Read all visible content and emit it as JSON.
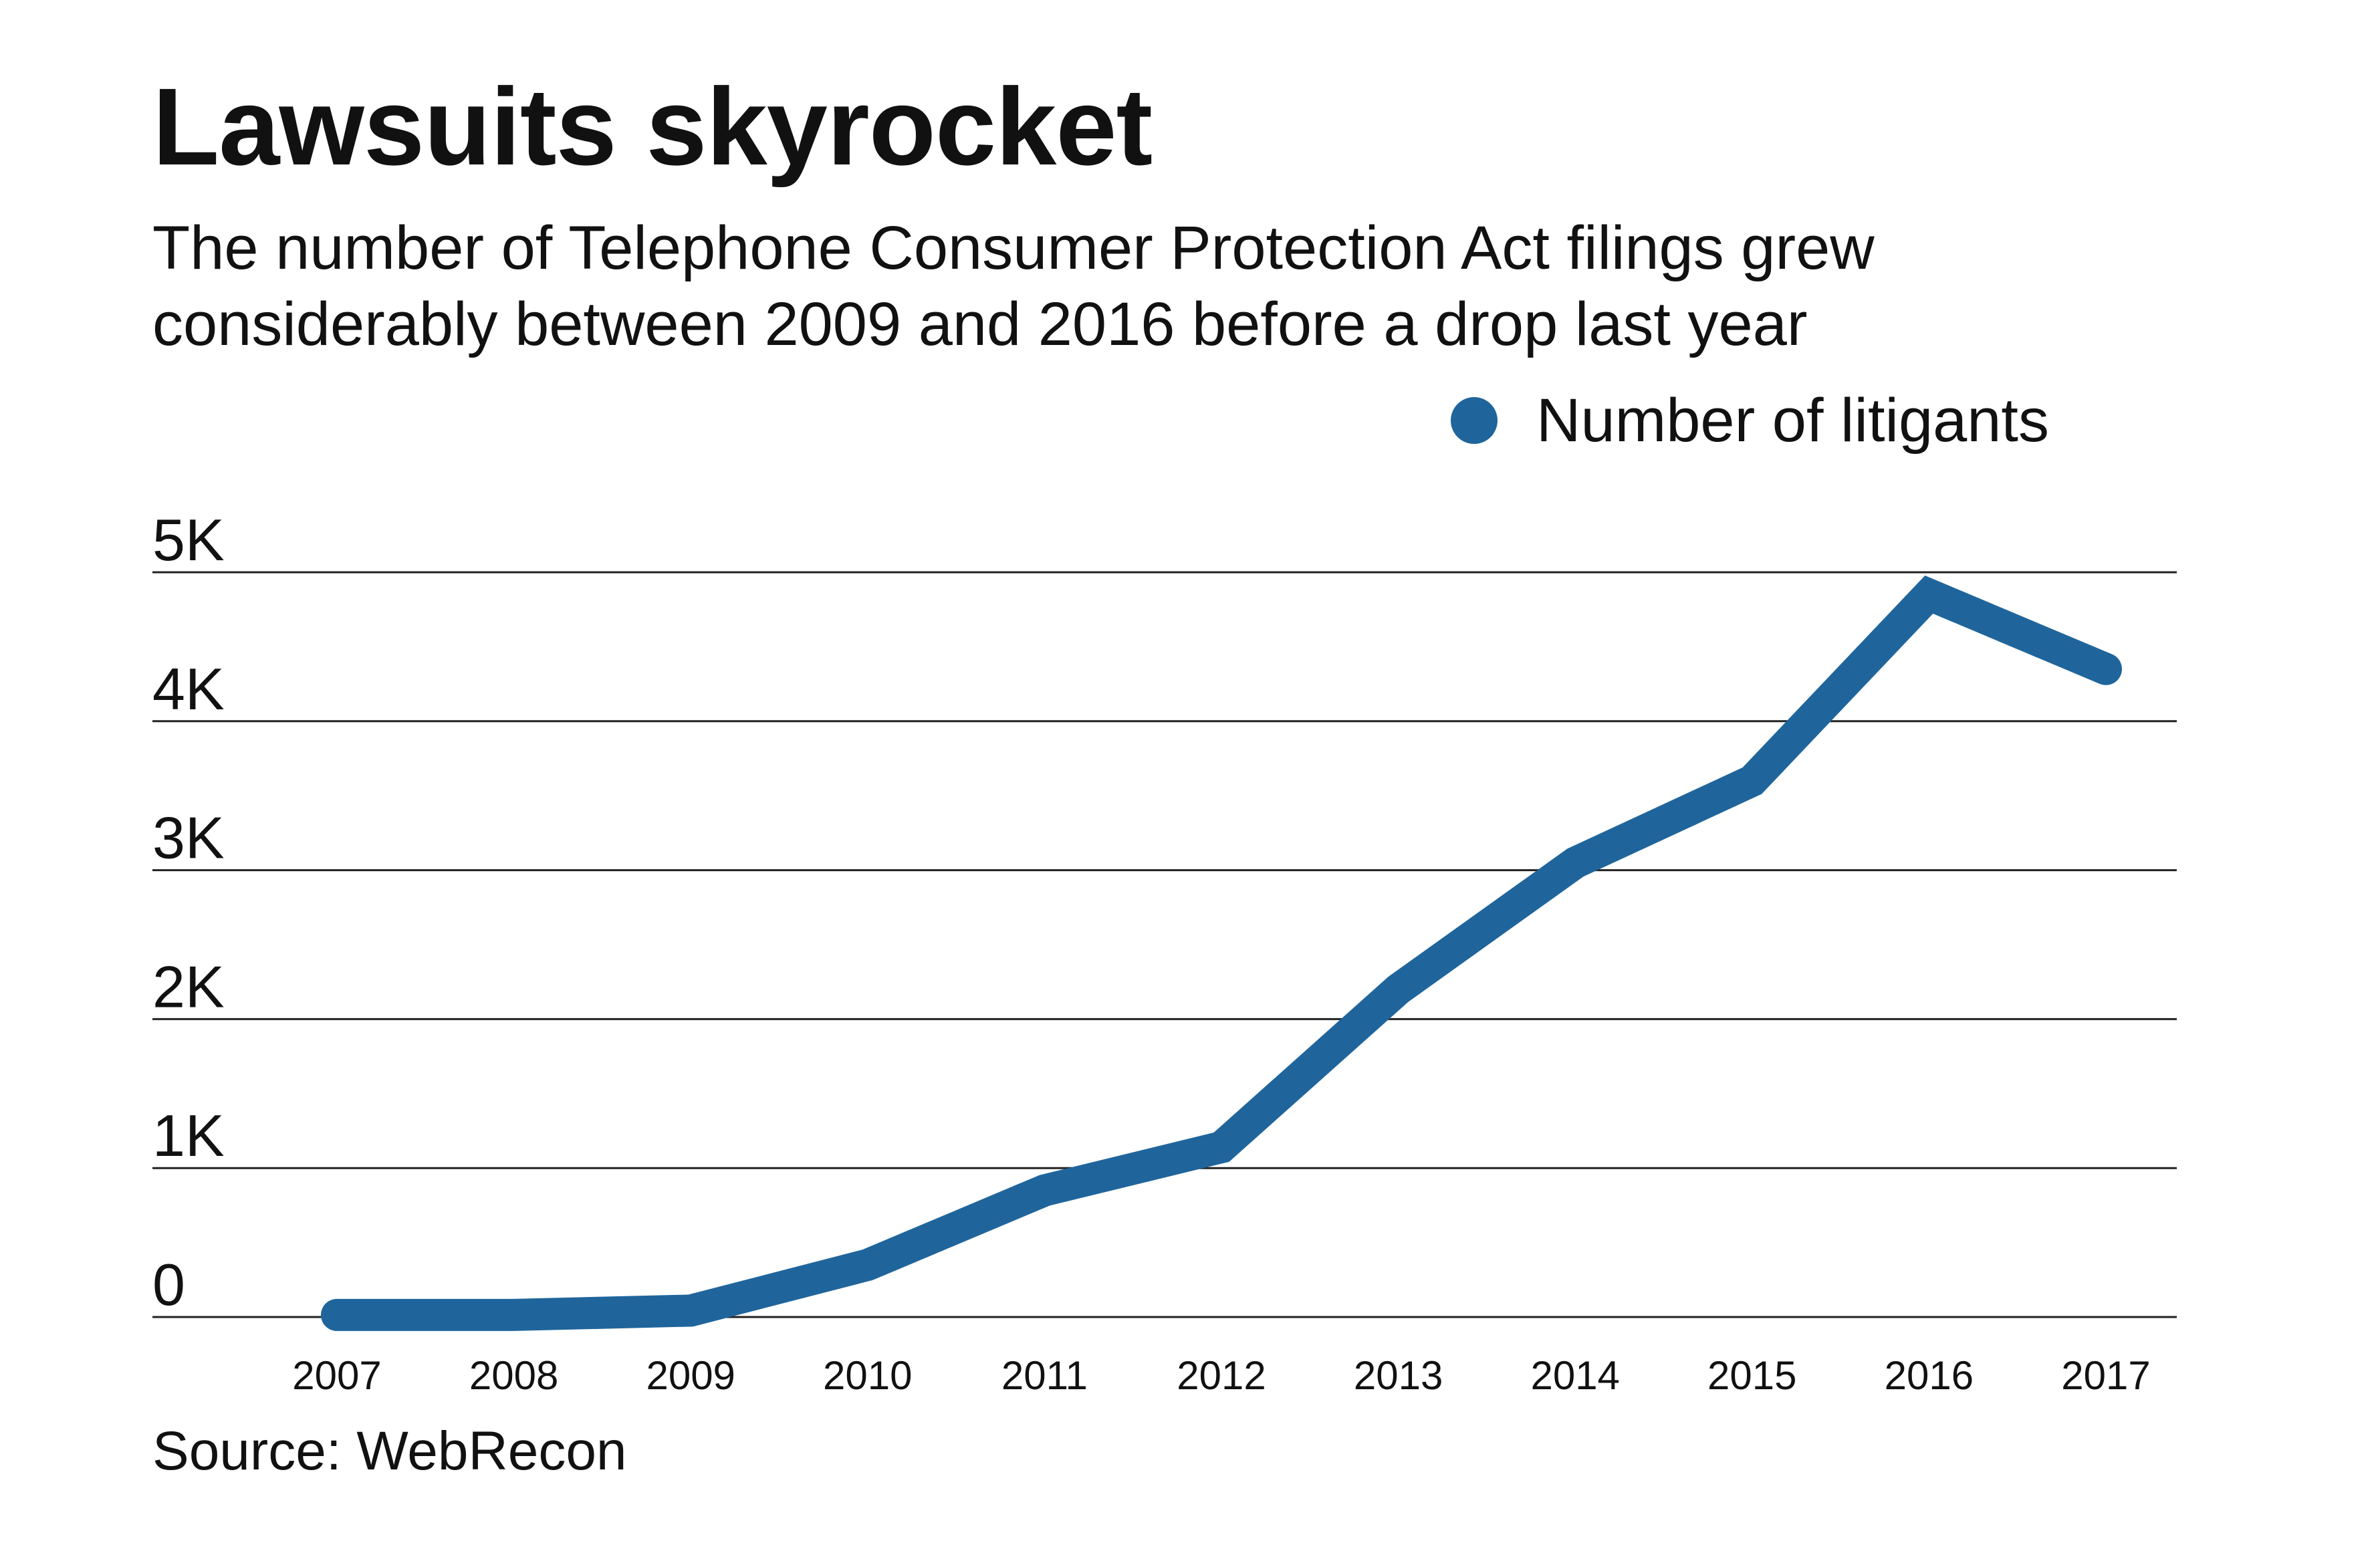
{
  "colors": {
    "line": "#1f659c",
    "grid": "#222222",
    "text": "#111111"
  },
  "chart_data": {
    "type": "line",
    "title": "Lawsuits skyrocket",
    "subtitle_lines": [
      "The number of Telephone Consumer Protection Act filings grew",
      "considerably between 2009 and 2016 before a drop last year"
    ],
    "x": [
      "2007",
      "2008",
      "2009",
      "2010",
      "2011",
      "2012",
      "2013",
      "2014",
      "2015",
      "2016",
      "2017"
    ],
    "series": [
      {
        "name": "Number of litigants",
        "values": [
          14,
          14,
          43,
          350,
          850,
          1140,
          2200,
          3050,
          3600,
          4850,
          4350
        ]
      }
    ],
    "ylim": [
      0,
      5000
    ],
    "yticks": [
      0,
      1000,
      2000,
      3000,
      4000,
      5000
    ],
    "ytick_labels": [
      "0",
      "1K",
      "2K",
      "3K",
      "4K",
      "5K"
    ],
    "grid": true,
    "legend_position": "top-right",
    "xlabel": "",
    "ylabel": "",
    "source": "Source: WebRecon"
  }
}
